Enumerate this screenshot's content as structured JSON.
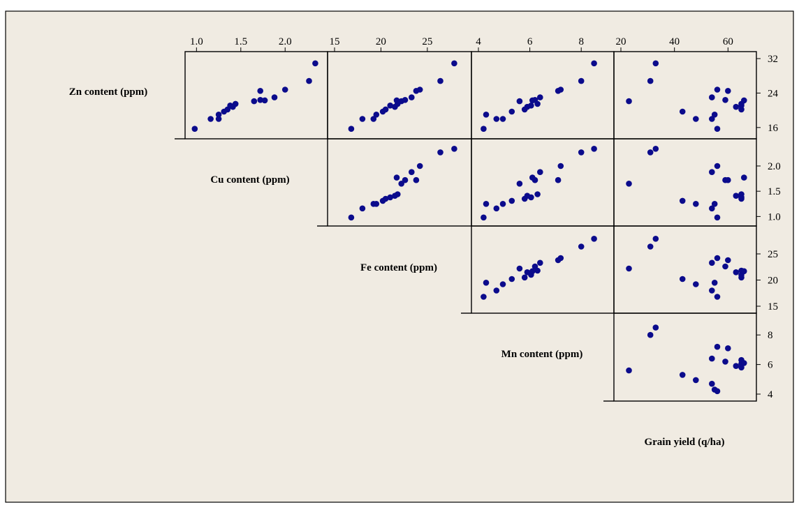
{
  "chart_data": {
    "type": "scatter",
    "variables": [
      {
        "key": "zn",
        "label": "Zn content (ppm)",
        "lim": [
          15,
          32
        ],
        "ticks": [
          16,
          24,
          32
        ],
        "tick_labels": [
          "16",
          "24",
          "32"
        ]
      },
      {
        "key": "cu",
        "label": "Cu content (ppm)",
        "lim": [
          0.95,
          2.4
        ],
        "ticks": [
          1.0,
          1.5,
          2.0
        ],
        "tick_labels": [
          "1.0",
          "1.5",
          "2.0"
        ]
      },
      {
        "key": "fe",
        "label": "Fe content (ppm)",
        "lim": [
          15,
          29
        ],
        "ticks": [
          15,
          20,
          25
        ],
        "tick_labels": [
          "15",
          "20",
          "25"
        ]
      },
      {
        "key": "mn",
        "label": "Mn content (ppm)",
        "lim": [
          4,
          9
        ],
        "ticks": [
          4,
          6,
          8
        ],
        "tick_labels": [
          "4",
          "6",
          "8"
        ]
      },
      {
        "key": "gy",
        "label": "Grain yield (q/ha)",
        "lim": [
          20,
          68
        ],
        "ticks": [
          20,
          40,
          60
        ],
        "tick_labels": [
          "20",
          "40",
          "60"
        ]
      }
    ],
    "top_axes": [
      {
        "var": "cu",
        "ticks": [
          1.0,
          1.5,
          2.0
        ],
        "tick_labels": [
          "1.0",
          "1.5",
          "2.0"
        ]
      },
      {
        "var": "fe",
        "ticks": [
          15,
          20,
          25
        ],
        "tick_labels": [
          "15",
          "20",
          "25"
        ]
      },
      {
        "var": "mn",
        "ticks": [
          4,
          6,
          8
        ],
        "tick_labels": [
          "4",
          "6",
          "8"
        ]
      },
      {
        "var": "gy",
        "ticks": [
          20,
          40,
          60
        ],
        "tick_labels": [
          "20",
          "40",
          "60"
        ]
      }
    ],
    "right_axes": [
      {
        "var": "zn",
        "ticks": [
          16,
          24,
          32
        ],
        "tick_labels": [
          "16",
          "24",
          "32"
        ]
      },
      {
        "var": "cu",
        "ticks": [
          1.0,
          1.5,
          2.0
        ],
        "tick_labels": [
          "1.0",
          "1.5",
          "2.0"
        ]
      },
      {
        "var": "fe",
        "ticks": [
          15,
          20,
          25
        ],
        "tick_labels": [
          "15",
          "20",
          "25"
        ]
      },
      {
        "var": "mn",
        "ticks": [
          4,
          6,
          8
        ],
        "tick_labels": [
          "4",
          "6",
          "8"
        ]
      }
    ],
    "observations": [
      {
        "zn": 15.7,
        "cu": 0.98,
        "fe": 16.8,
        "mn": 4.2,
        "gy": 56
      },
      {
        "zn": 18.0,
        "cu": 1.16,
        "fe": 18.0,
        "mn": 4.7,
        "gy": 54
      },
      {
        "zn": 18.0,
        "cu": 1.25,
        "fe": 19.2,
        "mn": 4.95,
        "gy": 48
      },
      {
        "zn": 19.0,
        "cu": 1.25,
        "fe": 19.5,
        "mn": 4.3,
        "gy": 55
      },
      {
        "zn": 19.7,
        "cu": 1.31,
        "fe": 20.2,
        "mn": 5.3,
        "gy": 43
      },
      {
        "zn": 20.2,
        "cu": 1.35,
        "fe": 20.5,
        "mn": 5.8,
        "gy": 65
      },
      {
        "zn": 21.1,
        "cu": 1.38,
        "fe": 21.0,
        "mn": 6.05,
        "gy": 65
      },
      {
        "zn": 20.8,
        "cu": 1.41,
        "fe": 21.5,
        "mn": 5.9,
        "gy": 63
      },
      {
        "zn": 21.5,
        "cu": 1.44,
        "fe": 21.8,
        "mn": 6.3,
        "gy": 65
      },
      {
        "zn": 22.1,
        "cu": 1.65,
        "fe": 22.2,
        "mn": 5.6,
        "gy": 23
      },
      {
        "zn": 22.4,
        "cu": 1.72,
        "fe": 22.6,
        "mn": 6.2,
        "gy": 59
      },
      {
        "zn": 22.3,
        "cu": 1.77,
        "fe": 21.7,
        "mn": 6.1,
        "gy": 66
      },
      {
        "zn": 23.0,
        "cu": 1.88,
        "fe": 23.3,
        "mn": 6.4,
        "gy": 54
      },
      {
        "zn": 24.5,
        "cu": 1.72,
        "fe": 23.8,
        "mn": 7.1,
        "gy": 60
      },
      {
        "zn": 24.8,
        "cu": 2.0,
        "fe": 24.2,
        "mn": 7.2,
        "gy": 56
      },
      {
        "zn": 26.8,
        "cu": 2.27,
        "fe": 26.4,
        "mn": 8.0,
        "gy": 31
      },
      {
        "zn": 30.9,
        "cu": 2.34,
        "fe": 27.9,
        "mn": 8.5,
        "gy": 33
      }
    ]
  }
}
